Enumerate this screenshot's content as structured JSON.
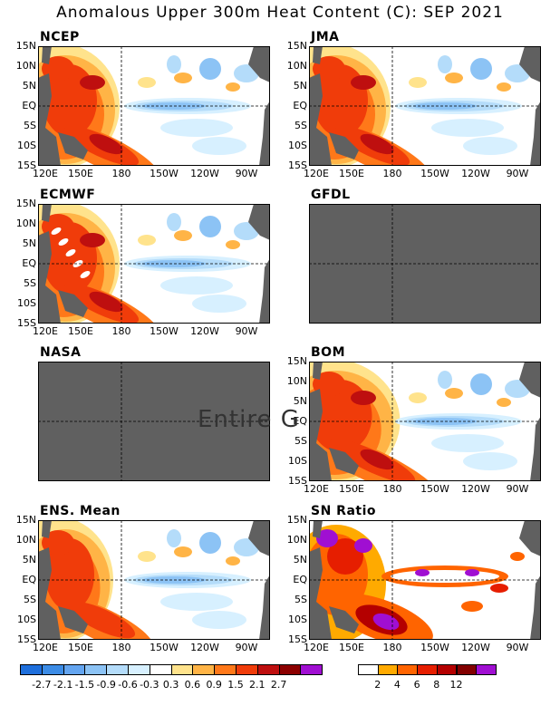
{
  "title": "Anomalous Upper 300m Heat Content (C): SEP 2021",
  "lat_ticks": [
    "15N",
    "10N",
    "5N",
    "EQ",
    "5S",
    "10S",
    "15S"
  ],
  "lon_ticks": [
    "120E",
    "150E",
    "180",
    "150W",
    "120W",
    "90W"
  ],
  "overlay_text": "Entire G",
  "panels": [
    {
      "name": "NCEP",
      "label": "NCEP",
      "has_data": true,
      "xticks": true
    },
    {
      "name": "JMA",
      "label": "JMA",
      "has_data": true,
      "xticks": true
    },
    {
      "name": "ECMWF",
      "label": "ECMWF",
      "has_data": true,
      "xticks": false
    },
    {
      "name": "GFDL",
      "label": "GFDL",
      "has_data": false,
      "xticks": false
    },
    {
      "name": "NASA",
      "label": "NASA",
      "has_data": false,
      "xticks": false
    },
    {
      "name": "BOM",
      "label": "BOM",
      "has_data": true,
      "xticks": true
    },
    {
      "name": "ENS",
      "label": "ENS. Mean",
      "has_data": true,
      "xticks": true
    },
    {
      "name": "SN",
      "label": "SN Ratio",
      "has_data": true,
      "xticks": true
    }
  ],
  "colorbar_anom": {
    "colors": [
      "#1E6FDC",
      "#3C8CE6",
      "#64A5F0",
      "#8CC3F5",
      "#B4DCFA",
      "#D7F0FF",
      "#FFFFFF",
      "#FFE38C",
      "#FFB446",
      "#FF7819",
      "#F03C0A",
      "#BE0F0F",
      "#8C0000",
      "#A00FD2"
    ],
    "labels": [
      "-2.7",
      "-2.1",
      "-1.5",
      "-0.9",
      "-0.6",
      "-0.3",
      "0.3",
      "0.6",
      "0.9",
      "1.5",
      "2.1",
      "2.7"
    ]
  },
  "colorbar_sn": {
    "colors": [
      "#FFFFFF",
      "#FFAA00",
      "#FF6400",
      "#E61E00",
      "#B40000",
      "#820000",
      "#A00FD2"
    ],
    "labels": [
      "2",
      "4",
      "6",
      "8",
      "12"
    ]
  },
  "chart_data": {
    "type": "heatmap",
    "title": "Anomalous Upper 300m Heat Content (C): SEP 2021",
    "variable": "Upper 300m heat content anomaly (C)",
    "time": "SEP 2021",
    "lon_range": [
      "120E",
      "80W"
    ],
    "lat_range": [
      "15S",
      "15N"
    ],
    "lon_ticks": [
      "120E",
      "150E",
      "180",
      "150W",
      "120W",
      "90W"
    ],
    "lat_ticks": [
      "15N",
      "10N",
      "5N",
      "EQ",
      "5S",
      "10S",
      "15S"
    ],
    "panels": [
      "NCEP",
      "JMA",
      "ECMWF",
      "GFDL",
      "NASA",
      "BOM",
      "ENS. Mean",
      "SN Ratio"
    ],
    "missing_panels": [
      "GFDL",
      "NASA"
    ],
    "anomaly_levels": [
      -2.7,
      -2.1,
      -1.5,
      -0.9,
      -0.6,
      -0.3,
      0.3,
      0.6,
      0.9,
      1.5,
      2.1,
      2.7
    ],
    "sn_levels": [
      2,
      4,
      6,
      8,
      12
    ],
    "features": {
      "warm_west_pacific": "positive anomalies >1.5 C west of 180, strongest 5S-10S near 150E-180",
      "cool_equatorial_central_east": "negative anomalies -0.3 to -1.5 C along EQ from 170W to 100W",
      "ens_mean_peak_negative": -0.9,
      "ens_mean_peak_positive": 2.1
    }
  }
}
